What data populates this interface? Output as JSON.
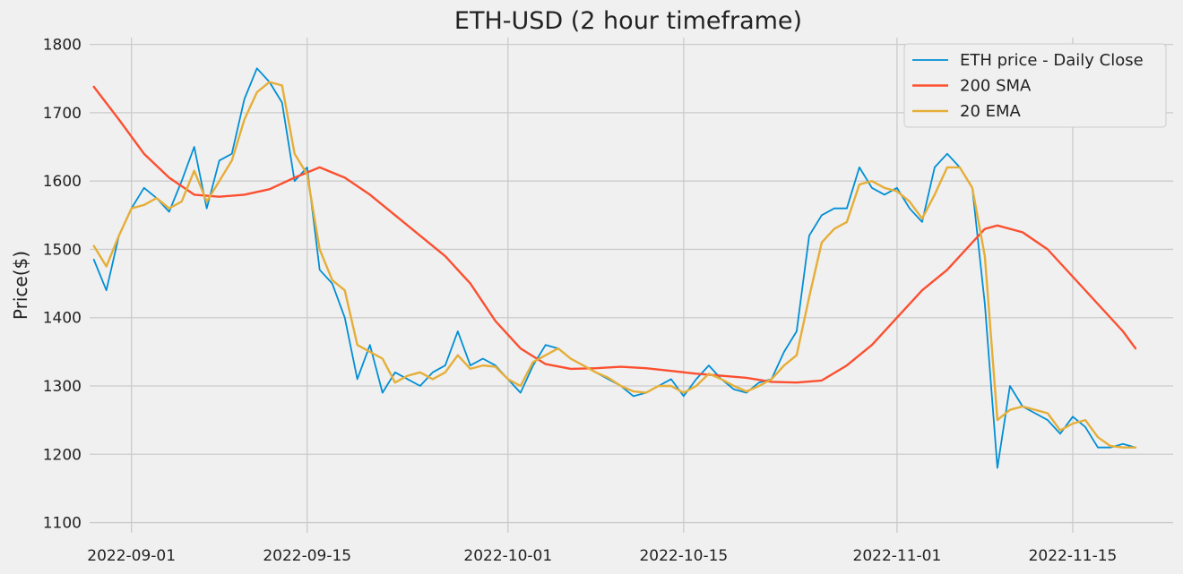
{
  "chart_data": {
    "type": "line",
    "title": "ETH-USD (2 hour timeframe)",
    "xlabel": "",
    "ylabel": "Price($)",
    "xlim": [
      "2022-08-28T16:00",
      "2022-11-23T00:00"
    ],
    "ylim": [
      1085,
      1810
    ],
    "x_ticks": [
      "2022-09-01",
      "2022-09-15",
      "2022-10-01",
      "2022-10-15",
      "2022-11-01",
      "2022-11-15"
    ],
    "y_ticks": [
      1100,
      1200,
      1300,
      1400,
      1500,
      1600,
      1700,
      1800
    ],
    "grid": true,
    "legend": "top-right",
    "series": [
      {
        "name": "ETH price - Daily Close",
        "color": "#008fd5",
        "x": [
          "2022-08-29",
          "2022-08-30",
          "2022-08-31",
          "2022-09-01",
          "2022-09-02",
          "2022-09-03",
          "2022-09-04",
          "2022-09-05",
          "2022-09-06",
          "2022-09-07",
          "2022-09-08",
          "2022-09-09",
          "2022-09-10",
          "2022-09-11",
          "2022-09-12",
          "2022-09-13",
          "2022-09-14",
          "2022-09-15",
          "2022-09-16",
          "2022-09-17",
          "2022-09-18",
          "2022-09-19",
          "2022-09-20",
          "2022-09-21",
          "2022-09-22",
          "2022-09-23",
          "2022-09-24",
          "2022-09-25",
          "2022-09-26",
          "2022-09-27",
          "2022-09-28",
          "2022-09-29",
          "2022-09-30",
          "2022-10-01",
          "2022-10-02",
          "2022-10-03",
          "2022-10-04",
          "2022-10-05",
          "2022-10-06",
          "2022-10-07",
          "2022-10-08",
          "2022-10-09",
          "2022-10-10",
          "2022-10-11",
          "2022-10-12",
          "2022-10-13",
          "2022-10-14",
          "2022-10-15",
          "2022-10-16",
          "2022-10-17",
          "2022-10-18",
          "2022-10-19",
          "2022-10-20",
          "2022-10-21",
          "2022-10-22",
          "2022-10-23",
          "2022-10-24",
          "2022-10-25",
          "2022-10-26",
          "2022-10-27",
          "2022-10-28",
          "2022-10-29",
          "2022-10-30",
          "2022-10-31",
          "2022-11-01",
          "2022-11-02",
          "2022-11-03",
          "2022-11-04",
          "2022-11-05",
          "2022-11-06",
          "2022-11-07",
          "2022-11-08",
          "2022-11-09",
          "2022-11-10",
          "2022-11-11",
          "2022-11-12",
          "2022-11-13",
          "2022-11-14",
          "2022-11-15",
          "2022-11-16",
          "2022-11-17",
          "2022-11-18",
          "2022-11-19",
          "2022-11-20"
        ],
        "values": [
          1485,
          1440,
          1520,
          1560,
          1590,
          1575,
          1555,
          1600,
          1650,
          1560,
          1630,
          1640,
          1720,
          1765,
          1745,
          1715,
          1600,
          1620,
          1470,
          1450,
          1400,
          1310,
          1360,
          1290,
          1320,
          1310,
          1300,
          1320,
          1330,
          1380,
          1330,
          1340,
          1330,
          1310,
          1290,
          1330,
          1360,
          1355,
          1340,
          1330,
          1320,
          1310,
          1300,
          1285,
          1290,
          1300,
          1310,
          1285,
          1310,
          1330,
          1310,
          1295,
          1290,
          1305,
          1310,
          1350,
          1380,
          1520,
          1550,
          1560,
          1560,
          1620,
          1590,
          1580,
          1590,
          1560,
          1540,
          1620,
          1640,
          1620,
          1590,
          1420,
          1180,
          1300,
          1270,
          1260,
          1250,
          1230,
          1255,
          1240,
          1210,
          1210,
          1215,
          1210
        ]
      },
      {
        "name": "200 SMA",
        "color": "#fc4f30",
        "x": [
          "2022-08-29",
          "2022-08-31",
          "2022-09-02",
          "2022-09-04",
          "2022-09-06",
          "2022-09-08",
          "2022-09-10",
          "2022-09-12",
          "2022-09-14",
          "2022-09-16",
          "2022-09-18",
          "2022-09-20",
          "2022-09-22",
          "2022-09-24",
          "2022-09-26",
          "2022-09-28",
          "2022-09-30",
          "2022-10-02",
          "2022-10-04",
          "2022-10-06",
          "2022-10-08",
          "2022-10-10",
          "2022-10-12",
          "2022-10-14",
          "2022-10-16",
          "2022-10-18",
          "2022-10-20",
          "2022-10-22",
          "2022-10-24",
          "2022-10-26",
          "2022-10-28",
          "2022-10-30",
          "2022-11-01",
          "2022-11-03",
          "2022-11-05",
          "2022-11-07",
          "2022-11-08",
          "2022-11-09",
          "2022-11-11",
          "2022-11-13",
          "2022-11-15",
          "2022-11-17",
          "2022-11-19",
          "2022-11-20"
        ],
        "values": [
          1738,
          1690,
          1640,
          1605,
          1580,
          1577,
          1580,
          1588,
          1605,
          1620,
          1605,
          1580,
          1550,
          1520,
          1490,
          1450,
          1395,
          1355,
          1332,
          1325,
          1326,
          1328,
          1326,
          1322,
          1318,
          1315,
          1312,
          1306,
          1305,
          1308,
          1330,
          1360,
          1400,
          1440,
          1470,
          1510,
          1530,
          1535,
          1525,
          1500,
          1460,
          1420,
          1380,
          1355
        ]
      },
      {
        "name": "20 EMA",
        "color": "#e5ae38",
        "x": [
          "2022-08-29",
          "2022-08-30",
          "2022-08-31",
          "2022-09-01",
          "2022-09-02",
          "2022-09-03",
          "2022-09-04",
          "2022-09-05",
          "2022-09-06",
          "2022-09-07",
          "2022-09-08",
          "2022-09-09",
          "2022-09-10",
          "2022-09-11",
          "2022-09-12",
          "2022-09-13",
          "2022-09-14",
          "2022-09-15",
          "2022-09-16",
          "2022-09-17",
          "2022-09-18",
          "2022-09-19",
          "2022-09-20",
          "2022-09-21",
          "2022-09-22",
          "2022-09-23",
          "2022-09-24",
          "2022-09-25",
          "2022-09-26",
          "2022-09-27",
          "2022-09-28",
          "2022-09-29",
          "2022-09-30",
          "2022-10-01",
          "2022-10-02",
          "2022-10-03",
          "2022-10-04",
          "2022-10-05",
          "2022-10-06",
          "2022-10-07",
          "2022-10-08",
          "2022-10-09",
          "2022-10-10",
          "2022-10-11",
          "2022-10-12",
          "2022-10-13",
          "2022-10-14",
          "2022-10-15",
          "2022-10-16",
          "2022-10-17",
          "2022-10-18",
          "2022-10-19",
          "2022-10-20",
          "2022-10-21",
          "2022-10-22",
          "2022-10-23",
          "2022-10-24",
          "2022-10-25",
          "2022-10-26",
          "2022-10-27",
          "2022-10-28",
          "2022-10-29",
          "2022-10-30",
          "2022-10-31",
          "2022-11-01",
          "2022-11-02",
          "2022-11-03",
          "2022-11-04",
          "2022-11-05",
          "2022-11-06",
          "2022-11-07",
          "2022-11-08",
          "2022-11-09",
          "2022-11-10",
          "2022-11-11",
          "2022-11-12",
          "2022-11-13",
          "2022-11-14",
          "2022-11-15",
          "2022-11-16",
          "2022-11-17",
          "2022-11-18",
          "2022-11-19",
          "2022-11-20"
        ],
        "values": [
          1505,
          1475,
          1520,
          1560,
          1565,
          1575,
          1560,
          1570,
          1615,
          1570,
          1600,
          1630,
          1690,
          1730,
          1745,
          1740,
          1640,
          1610,
          1500,
          1455,
          1440,
          1360,
          1350,
          1340,
          1305,
          1315,
          1320,
          1310,
          1320,
          1345,
          1325,
          1330,
          1328,
          1310,
          1300,
          1335,
          1345,
          1355,
          1340,
          1330,
          1320,
          1312,
          1300,
          1292,
          1290,
          1300,
          1300,
          1290,
          1300,
          1318,
          1310,
          1300,
          1292,
          1300,
          1310,
          1330,
          1345,
          1430,
          1510,
          1530,
          1540,
          1595,
          1600,
          1590,
          1585,
          1570,
          1545,
          1580,
          1620,
          1620,
          1590,
          1490,
          1250,
          1265,
          1270,
          1265,
          1260,
          1235,
          1245,
          1250,
          1225,
          1212,
          1210,
          1210
        ]
      }
    ]
  }
}
